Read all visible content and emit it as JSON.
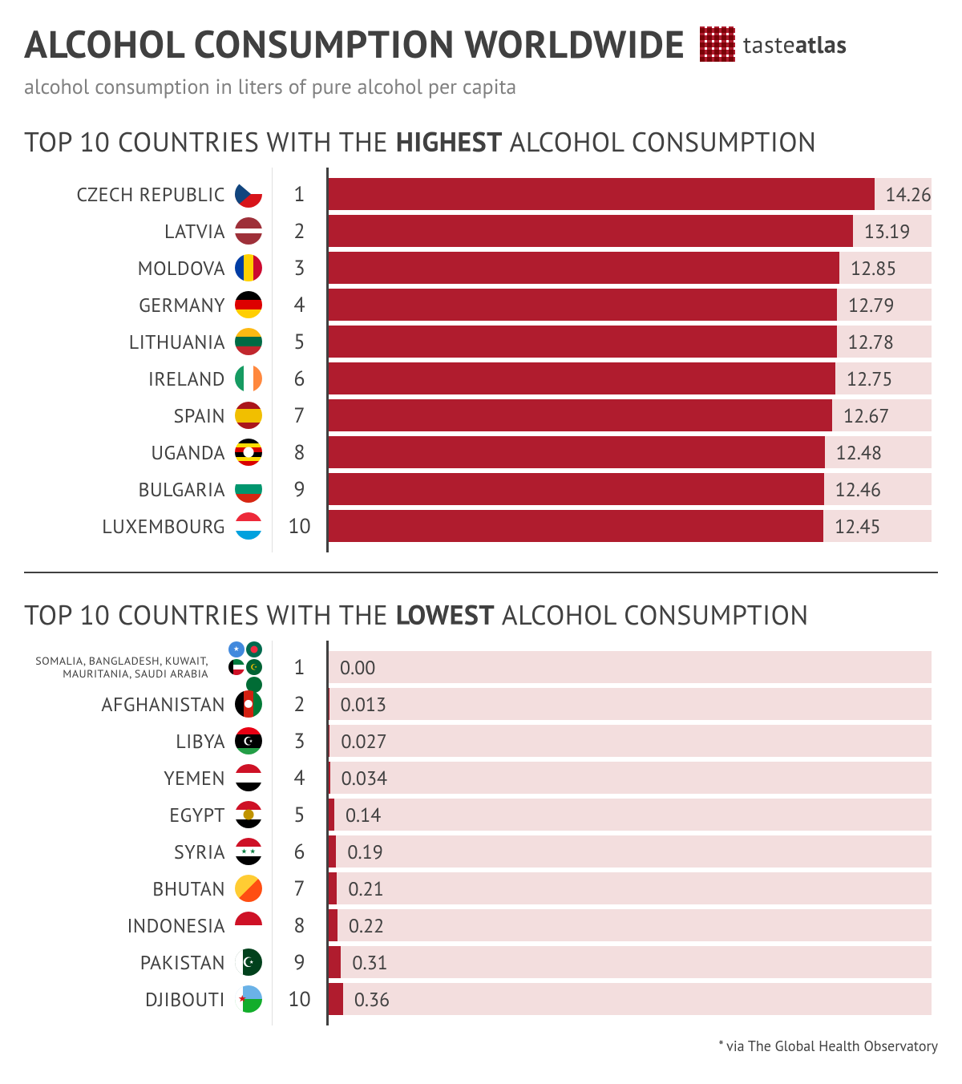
{
  "title": "ALCOHOL CONSUMPTION WORLDWIDE",
  "subtitle": "alcohol consumption in liters of pure alcohol per capita",
  "brand": {
    "name_a": "taste",
    "name_b": "atlas"
  },
  "footnote": "* via The Global Health Observatory",
  "colors": {
    "bar_fill": "#b01c2e",
    "bar_track": "#f3dede",
    "text": "#404040",
    "subtitle": "#808080",
    "grid": "#e0e0e0",
    "axis": "#404040",
    "background": "#ffffff"
  },
  "typography": {
    "title_fontsize": 48,
    "section_fontsize": 34,
    "label_fontsize": 24,
    "value_fontsize": 24,
    "small_label_fontsize": 14
  },
  "sections": {
    "highest": {
      "title_pre": "TOP 10 COUNTRIES WITH THE ",
      "title_emph": "HIGHEST",
      "title_post": " ALCOHOL CONSUMPTION",
      "max_value": 14.26,
      "bar_max_pct": 94,
      "rows": [
        {
          "rank": 1,
          "label": "CZECH REPUBLIC",
          "value": 14.26,
          "value_str": "14.26",
          "flag": "cz"
        },
        {
          "rank": 2,
          "label": "LATVIA",
          "value": 13.19,
          "value_str": "13.19",
          "flag": "lv"
        },
        {
          "rank": 3,
          "label": "MOLDOVA",
          "value": 12.85,
          "value_str": "12.85",
          "flag": "md"
        },
        {
          "rank": 4,
          "label": "GERMANY",
          "value": 12.79,
          "value_str": "12.79",
          "flag": "de"
        },
        {
          "rank": 5,
          "label": "LITHUANIA",
          "value": 12.78,
          "value_str": "12.78",
          "flag": "lt"
        },
        {
          "rank": 6,
          "label": "IRELAND",
          "value": 12.75,
          "value_str": "12.75",
          "flag": "ie"
        },
        {
          "rank": 7,
          "label": "SPAIN",
          "value": 12.67,
          "value_str": "12.67",
          "flag": "es"
        },
        {
          "rank": 8,
          "label": "UGANDA",
          "value": 12.48,
          "value_str": "12.48",
          "flag": "ug"
        },
        {
          "rank": 9,
          "label": "BULGARIA",
          "value": 12.46,
          "value_str": "12.46",
          "flag": "bg"
        },
        {
          "rank": 10,
          "label": "LUXEMBOURG",
          "value": 12.45,
          "value_str": "12.45",
          "flag": "lu"
        }
      ]
    },
    "lowest": {
      "title_pre": "TOP 10 COUNTRIES WITH THE ",
      "title_emph": "LOWEST",
      "title_post": " ALCOHOL CONSUMPTION",
      "max_value": 14.26,
      "bar_max_pct": 94,
      "rows": [
        {
          "rank": 1,
          "label": "SOMALIA, BANGLADESH, KUWAIT, MAURITANIA, SAUDI ARABIA",
          "value": 0.0,
          "value_str": "0.00",
          "flag_cluster": [
            "so",
            "bd",
            "kw",
            "mr",
            "sa"
          ],
          "small": true
        },
        {
          "rank": 2,
          "label": "AFGHANISTAN",
          "value": 0.013,
          "value_str": "0.013",
          "flag": "af"
        },
        {
          "rank": 3,
          "label": "LIBYA",
          "value": 0.027,
          "value_str": "0.027",
          "flag": "ly"
        },
        {
          "rank": 4,
          "label": "YEMEN",
          "value": 0.034,
          "value_str": "0.034",
          "flag": "ye"
        },
        {
          "rank": 5,
          "label": "EGYPT",
          "value": 0.14,
          "value_str": "0.14",
          "flag": "eg"
        },
        {
          "rank": 6,
          "label": "SYRIA",
          "value": 0.19,
          "value_str": "0.19",
          "flag": "sy"
        },
        {
          "rank": 7,
          "label": "BHUTAN",
          "value": 0.21,
          "value_str": "0.21",
          "flag": "bt"
        },
        {
          "rank": 8,
          "label": "INDONESIA",
          "value": 0.22,
          "value_str": "0.22",
          "flag": "id"
        },
        {
          "rank": 9,
          "label": "PAKISTAN",
          "value": 0.31,
          "value_str": "0.31",
          "flag": "pk"
        },
        {
          "rank": 10,
          "label": "DJIBOUTI",
          "value": 0.36,
          "value_str": "0.36",
          "flag": "dj"
        }
      ]
    }
  },
  "flags": {
    "cz": {
      "type": "special_cz"
    },
    "lv": {
      "type": "hstripes",
      "colors": [
        "#9e3039",
        "#ffffff",
        "#9e3039"
      ],
      "weights": [
        2,
        1,
        2
      ]
    },
    "md": {
      "type": "vstripes",
      "colors": [
        "#003da5",
        "#ffd100",
        "#cc092f"
      ]
    },
    "de": {
      "type": "hstripes",
      "colors": [
        "#000000",
        "#dd0000",
        "#ffce00"
      ]
    },
    "lt": {
      "type": "hstripes",
      "colors": [
        "#fdb913",
        "#006a44",
        "#c1272d"
      ]
    },
    "ie": {
      "type": "vstripes",
      "colors": [
        "#169b62",
        "#ffffff",
        "#ff883e"
      ]
    },
    "es": {
      "type": "hstripes",
      "colors": [
        "#aa151b",
        "#f1bf00",
        "#aa151b"
      ],
      "weights": [
        1,
        2,
        1
      ]
    },
    "ug": {
      "type": "hstripes",
      "colors": [
        "#000000",
        "#fcdc04",
        "#d90000",
        "#000000",
        "#fcdc04",
        "#d90000"
      ],
      "center": "#ffffff"
    },
    "bg": {
      "type": "hstripes",
      "colors": [
        "#ffffff",
        "#00966e",
        "#d62612"
      ]
    },
    "lu": {
      "type": "hstripes",
      "colors": [
        "#ed2939",
        "#ffffff",
        "#00a1de"
      ]
    },
    "so": {
      "type": "solid",
      "color": "#4189dd",
      "star": "#ffffff"
    },
    "bd": {
      "type": "solid",
      "color": "#006a4e",
      "dot": "#f42a41"
    },
    "kw": {
      "type": "hstripes",
      "colors": [
        "#007a3d",
        "#ffffff",
        "#ce1126"
      ],
      "left": "#000000"
    },
    "mr": {
      "type": "solid",
      "color": "#006233",
      "crescent": "#ffc400"
    },
    "sa": {
      "type": "solid",
      "color": "#006c35"
    },
    "af": {
      "type": "vstripes",
      "colors": [
        "#000000",
        "#d32011",
        "#007a36"
      ],
      "center": "#ffffff"
    },
    "ly": {
      "type": "hstripes",
      "colors": [
        "#e70013",
        "#000000",
        "#239e46"
      ],
      "weights": [
        1,
        2,
        1
      ],
      "crescent": "#ffffff"
    },
    "ye": {
      "type": "hstripes",
      "colors": [
        "#ce1126",
        "#ffffff",
        "#000000"
      ]
    },
    "eg": {
      "type": "hstripes",
      "colors": [
        "#ce1126",
        "#ffffff",
        "#000000"
      ],
      "center": "#c09300"
    },
    "sy": {
      "type": "hstripes",
      "colors": [
        "#ce1126",
        "#ffffff",
        "#000000"
      ],
      "stars": "#007a3d"
    },
    "bt": {
      "type": "diag",
      "colors": [
        "#ffcc33",
        "#ff4e12"
      ]
    },
    "id": {
      "type": "hstripes",
      "colors": [
        "#ce1126",
        "#ffffff"
      ]
    },
    "pk": {
      "type": "solid",
      "color": "#01411c",
      "left": "#ffffff",
      "crescent": "#ffffff"
    },
    "dj": {
      "type": "hstripes",
      "colors": [
        "#6ab2e7",
        "#12ad2b"
      ],
      "left": "#ffffff",
      "star": "#d7141a"
    }
  }
}
